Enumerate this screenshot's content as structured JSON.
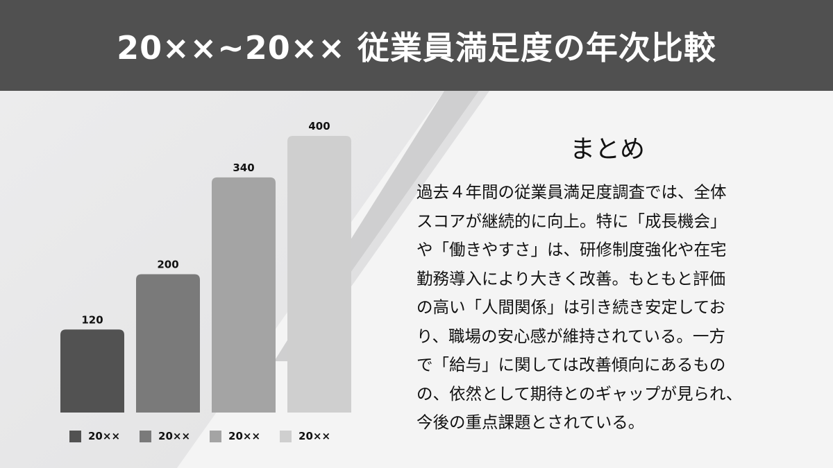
{
  "header": {
    "title": "20××~20×× 従業員満足度の年次比較"
  },
  "chart_data": {
    "type": "bar",
    "categories": [
      "20××",
      "20××",
      "20××",
      "20××"
    ],
    "values": [
      120,
      200,
      340,
      400
    ],
    "colors": [
      "#525252",
      "#7a7a7a",
      "#a4a4a4",
      "#cfcfcf"
    ],
    "legend": [
      "20××",
      "20××",
      "20××",
      "20××"
    ],
    "legend_position": "bottom",
    "grid": false,
    "data_labels": true
  },
  "summary": {
    "title": "まとめ",
    "body": "過去４年間の従業員満足度調査では、全体\nスコアが継続的に向上。特に「成長機会」\nや「働きやすさ」は、研修制度強化や在宅\n勤務導入により大きく改善。もともと評価\nの高い「人間関係」は引き続き安定してお\nり、職場の安心感が維持されている。一方\nで「給与」に関しては改善傾向にあるもの\nの、依然として期待とのギャップが見られ、\n今後の重点課題とされている。"
  }
}
